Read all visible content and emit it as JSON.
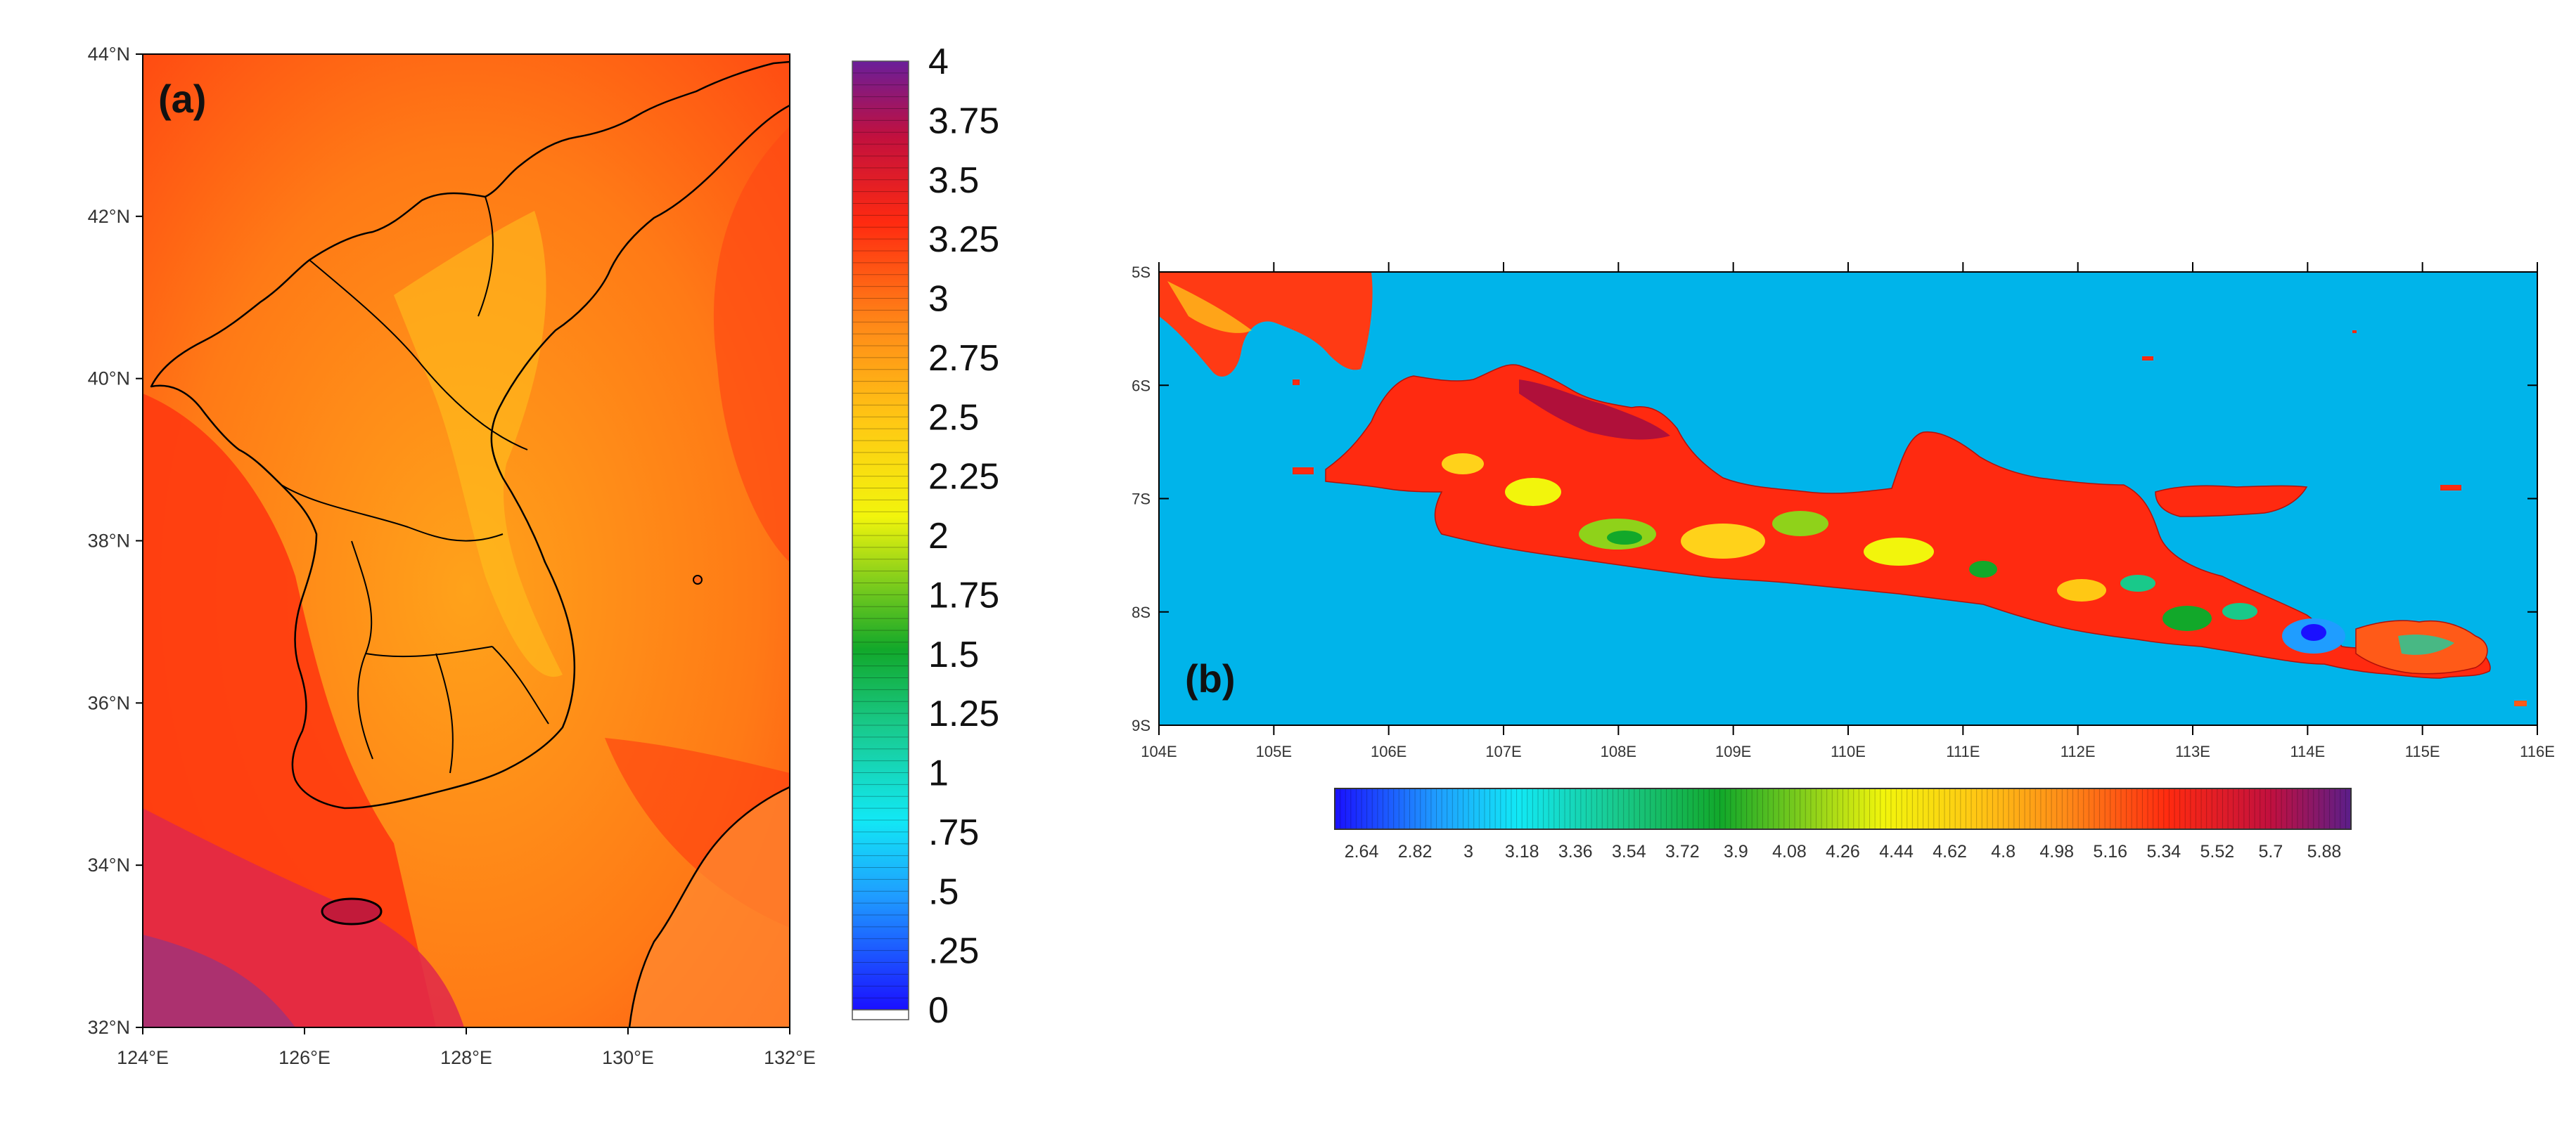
{
  "panel_a": {
    "tag": "(a)",
    "lat_labels": [
      "44°N",
      "42°N",
      "40°N",
      "38°N",
      "36°N",
      "34°N",
      "32°N"
    ],
    "lon_labels": [
      "124°E",
      "126°E",
      "128°E",
      "130°E",
      "132°E"
    ],
    "colorbar_labels": [
      "4",
      "3.75",
      "3.5",
      "3.25",
      "3",
      "2.75",
      "2.5",
      "2.25",
      "2",
      "1.75",
      "1.5",
      "1.25",
      "1",
      ".75",
      ".5",
      ".25",
      "0"
    ],
    "colorbar_min": 0,
    "colorbar_max": 4
  },
  "panel_b": {
    "tag": "(b)",
    "lat_labels": [
      "5S",
      "6S",
      "7S",
      "8S",
      "9S"
    ],
    "lon_labels": [
      "104E",
      "105E",
      "106E",
      "107E",
      "108E",
      "109E",
      "110E",
      "111E",
      "112E",
      "113E",
      "114E",
      "115E",
      "116E"
    ],
    "colorbar_labels": [
      "2.64",
      "2.82",
      "3",
      "3.18",
      "3.36",
      "3.54",
      "3.72",
      "3.9",
      "4.08",
      "4.26",
      "4.44",
      "4.62",
      "4.8",
      "4.98",
      "5.16",
      "5.34",
      "5.52",
      "5.7",
      "5.88"
    ],
    "colorbar_min": 2.55,
    "colorbar_max": 5.97
  },
  "colors": {
    "ocean_b": "#00b4ea",
    "hot_a": "#ff3b10",
    "warm_a": "#ff9a18",
    "purple": "#7a1fa6"
  }
}
